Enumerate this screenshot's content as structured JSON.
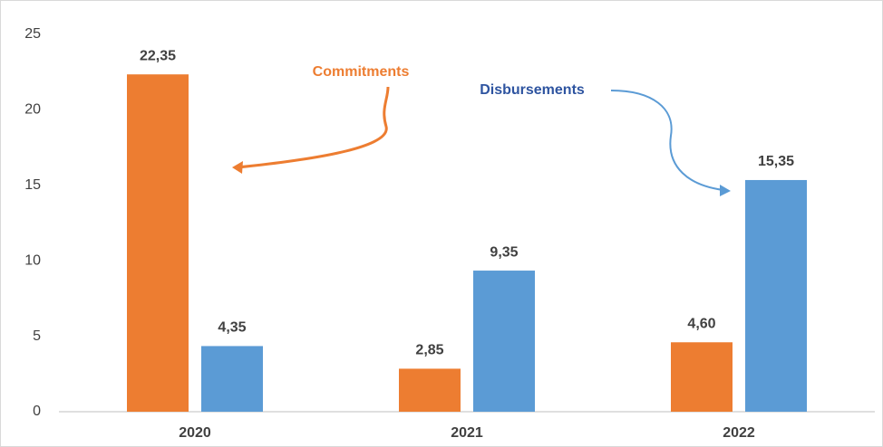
{
  "chart_data": {
    "type": "bar",
    "categories": [
      "2020",
      "2021",
      "2022"
    ],
    "series": [
      {
        "name": "Commitments",
        "color": "#ed7d31",
        "values": [
          22.35,
          2.85,
          4.6
        ],
        "value_labels": [
          "22,35",
          "2,85",
          "4,60"
        ]
      },
      {
        "name": "Disbursements",
        "color": "#5b9bd5",
        "values": [
          4.35,
          9.35,
          15.35
        ],
        "value_labels": [
          "4,35",
          "9,35",
          "15,35"
        ]
      }
    ],
    "ylim": [
      0,
      25
    ],
    "yticks": [
      0,
      5,
      10,
      15,
      20,
      25
    ],
    "grid": false
  }
}
